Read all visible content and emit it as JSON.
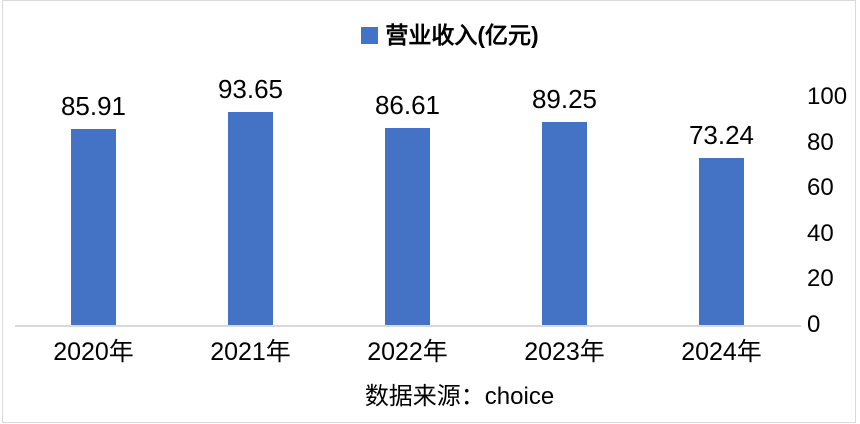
{
  "chart_data": {
    "type": "bar",
    "title": "",
    "legend": "营业收入(亿元)",
    "legend_position": "top",
    "categories": [
      "2020年",
      "2021年",
      "2022年",
      "2023年",
      "2024年"
    ],
    "values": [
      85.91,
      93.65,
      86.61,
      89.25,
      73.24
    ],
    "value_labels": [
      "85.91",
      "93.65",
      "86.61",
      "89.25",
      "73.24"
    ],
    "xlabel": "",
    "ylabel": "",
    "ylim": [
      0,
      100
    ],
    "yticks": [
      100,
      80,
      60,
      40,
      20,
      0
    ],
    "y_axis_side": "right",
    "grid": false,
    "bar_color": "#4472C4",
    "axis_line_color": "#D9D9D9",
    "label_color": "#000000"
  },
  "source": {
    "text": "数据来源：choice"
  }
}
